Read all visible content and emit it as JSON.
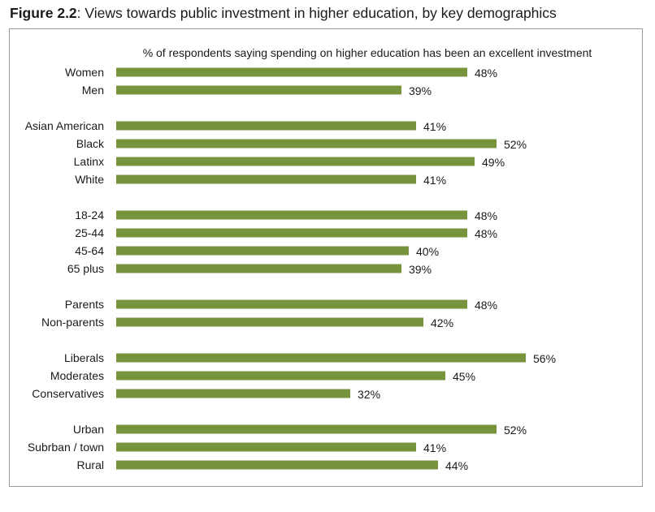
{
  "figure": {
    "label": "Figure 2.2",
    "caption": ": Views towards public investment in higher education, by key demographics"
  },
  "chart_data": {
    "type": "bar",
    "orientation": "horizontal",
    "subtitle": "% of respondents saying spending on higher education has been an excellent investment",
    "bar_color": "#77933c",
    "value_suffix": "%",
    "xlim": [
      0,
      60
    ],
    "groups": [
      {
        "categories": [
          "Women",
          "Men"
        ],
        "values": [
          48,
          39
        ]
      },
      {
        "categories": [
          "Asian American",
          "Black",
          "Latinx",
          "White"
        ],
        "values": [
          41,
          52,
          49,
          41
        ]
      },
      {
        "categories": [
          "18-24",
          "25-44",
          "45-64",
          "65 plus"
        ],
        "values": [
          48,
          48,
          40,
          39
        ]
      },
      {
        "categories": [
          "Parents",
          "Non-parents"
        ],
        "values": [
          48,
          42
        ]
      },
      {
        "categories": [
          "Liberals",
          "Moderates",
          "Conservatives"
        ],
        "values": [
          56,
          45,
          32
        ]
      },
      {
        "categories": [
          "Urban",
          "Subrban / town",
          "Rural"
        ],
        "values": [
          52,
          41,
          44
        ]
      }
    ]
  }
}
